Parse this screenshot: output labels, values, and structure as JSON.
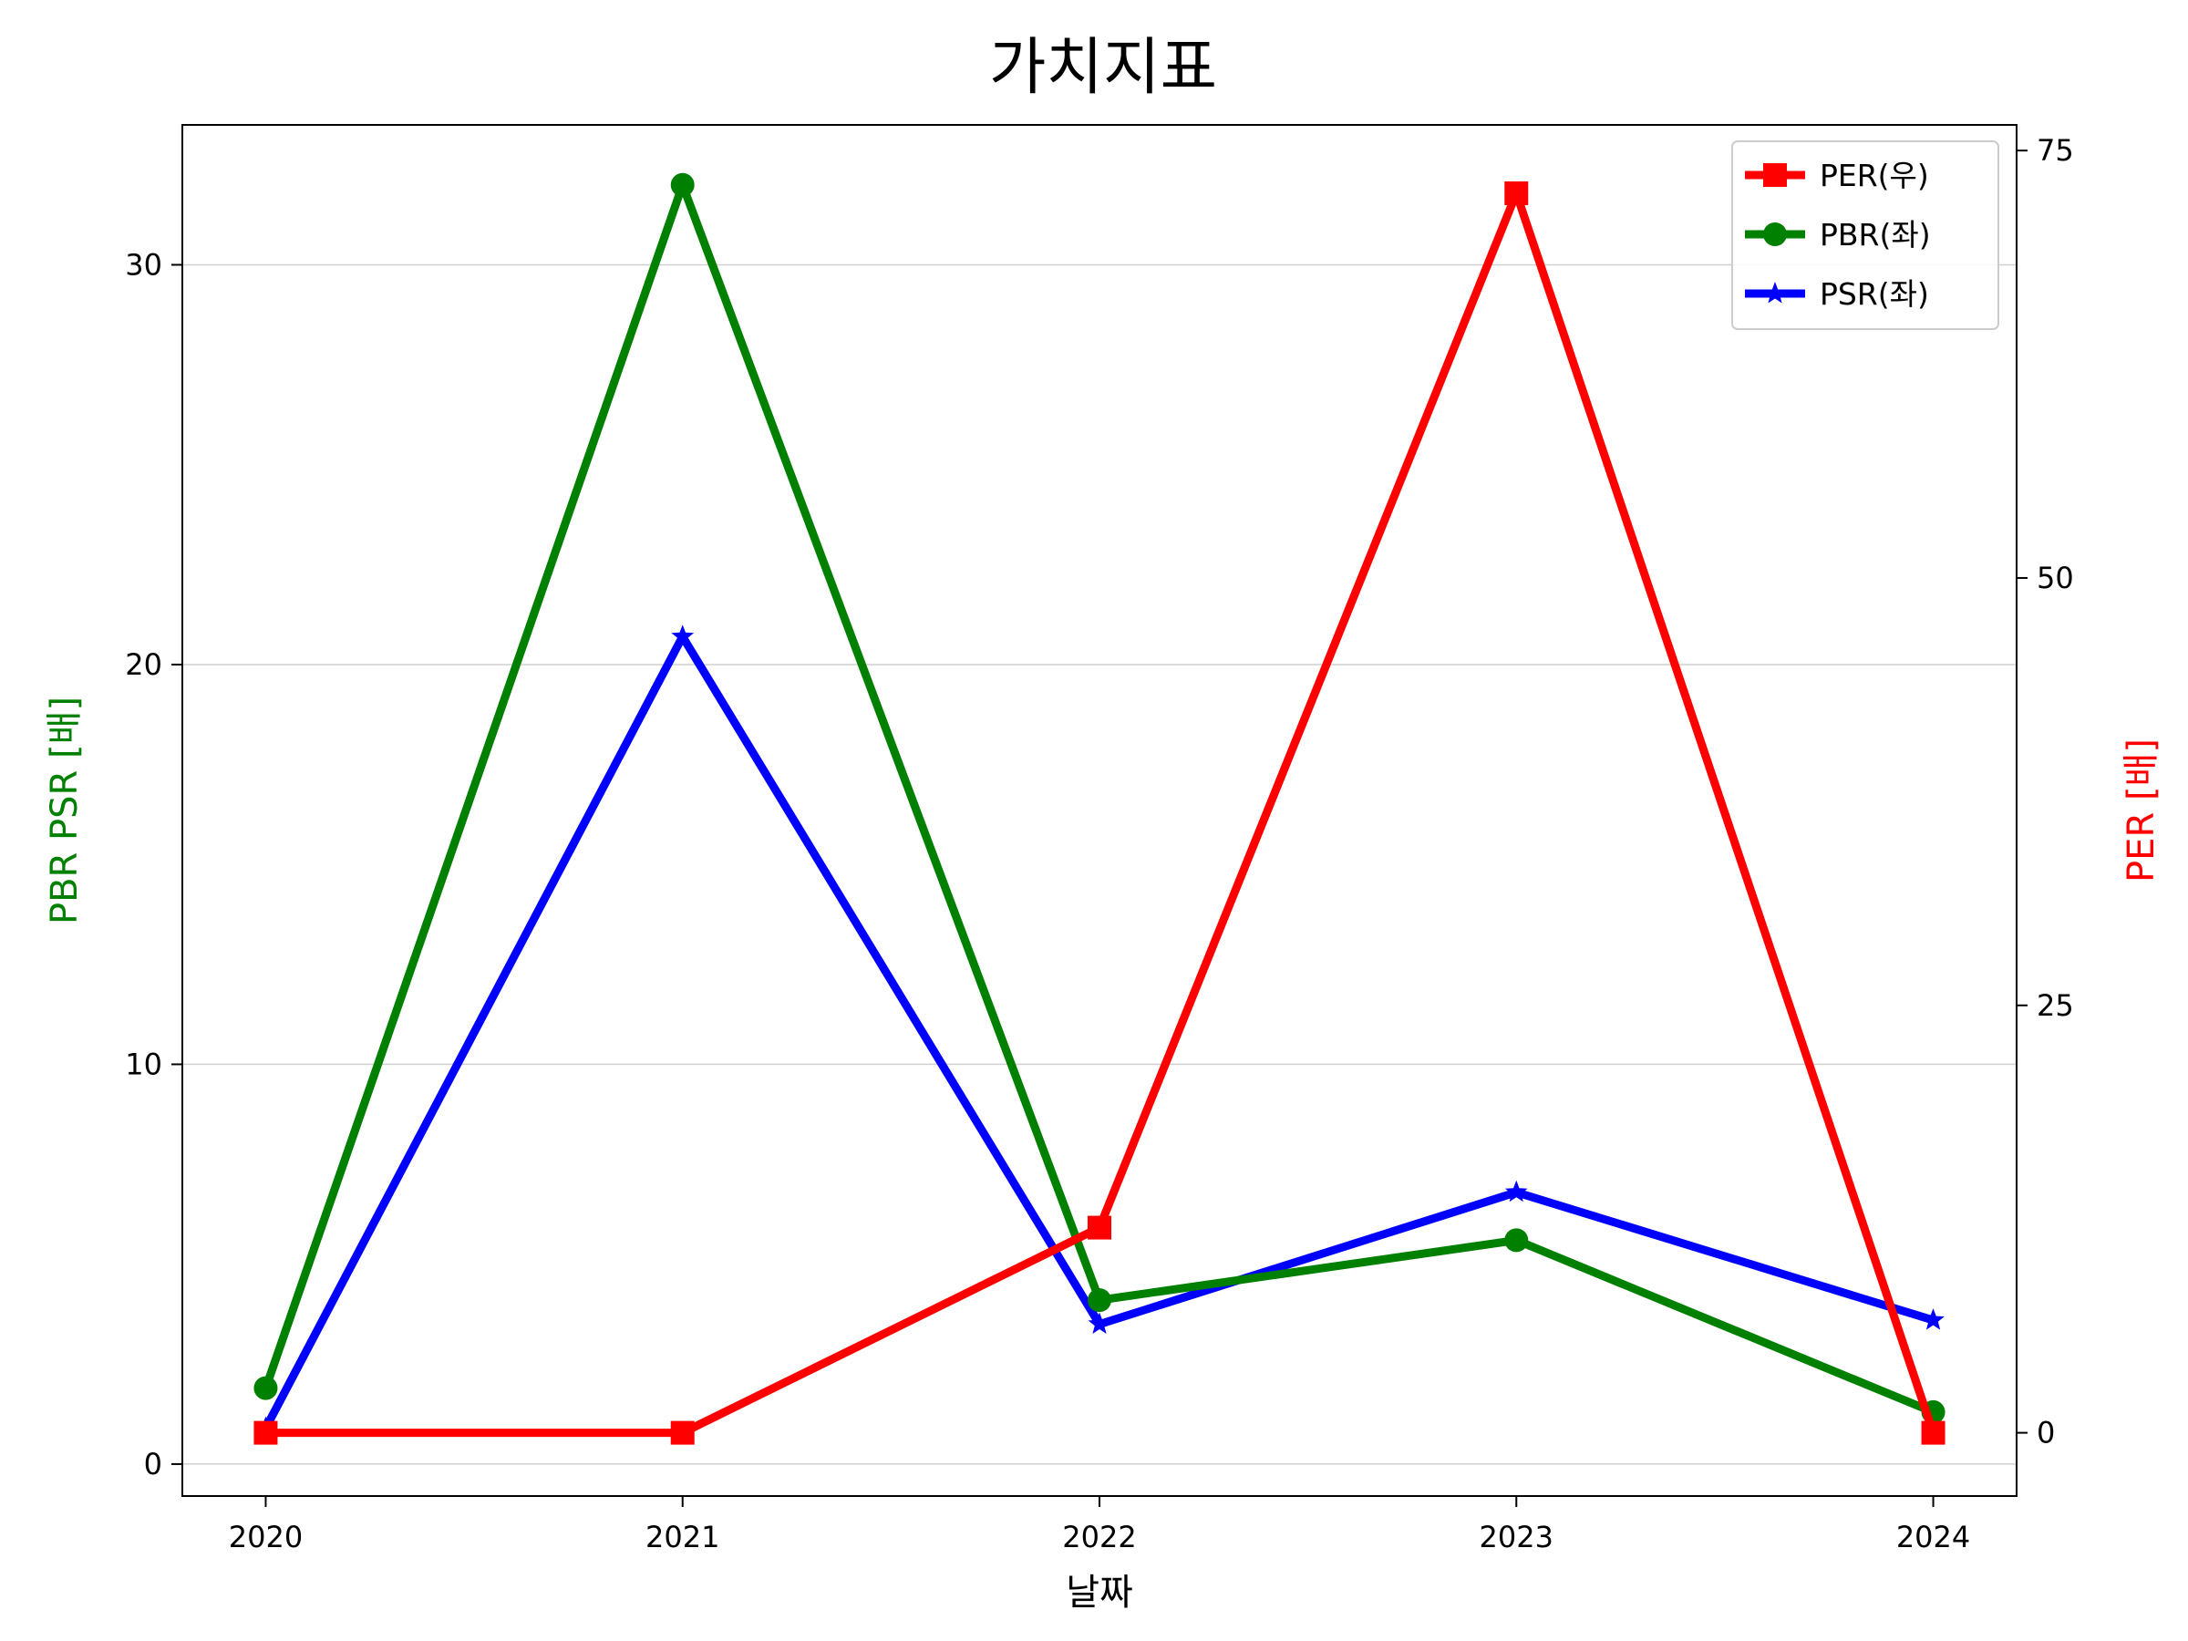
{
  "chart_data": {
    "type": "line",
    "title": "가치지표",
    "xlabel": "날짜",
    "ylabel_left": "PBR PSR [배]",
    "ylabel_right": "PER [배]",
    "ylabel_left_color": "#008000",
    "ylabel_right_color": "#ff0000",
    "x": [
      "2020",
      "2021",
      "2022",
      "2023",
      "2024"
    ],
    "x_tick_labels": [
      "2020",
      "2021",
      "2022",
      "2023",
      "2024"
    ],
    "y_left_ticks": [
      "0",
      "10",
      "20",
      "30"
    ],
    "y_right_ticks": [
      "0",
      "25",
      "50",
      "75"
    ],
    "y_left_lim": [
      -0.8,
      33.5
    ],
    "y_right_lim": [
      -3.7,
      76.5
    ],
    "grid": "horizontal",
    "legend_position": "top-right",
    "series": [
      {
        "name": "PER(우)",
        "axis": "right",
        "color": "#ff0000",
        "marker": "square",
        "values": [
          0.0,
          0.0,
          12.0,
          72.5,
          0.0
        ]
      },
      {
        "name": "PBR(좌)",
        "axis": "left",
        "color": "#008000",
        "marker": "circle",
        "values": [
          1.9,
          32.0,
          4.1,
          5.6,
          1.3
        ]
      },
      {
        "name": "PSR(좌)",
        "axis": "left",
        "color": "#0000ff",
        "marker": "star",
        "values": [
          0.9,
          20.7,
          3.5,
          6.8,
          3.6
        ]
      }
    ]
  }
}
